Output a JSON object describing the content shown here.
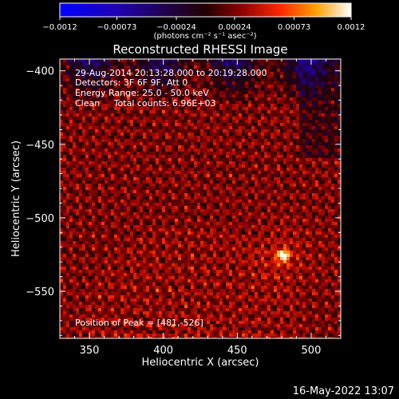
{
  "chart_data": {
    "type": "heatmap",
    "title": "Reconstructed RHESSI Image",
    "xlabel": "Heliocentric X (arcsec)",
    "ylabel": "Heliocentric Y (arcsec)",
    "xlim": [
      330,
      520
    ],
    "ylim": [
      -582,
      -392
    ],
    "x_ticks": [
      350,
      400,
      450,
      500
    ],
    "x_tick_labels": [
      "350",
      "400",
      "450",
      "500"
    ],
    "y_ticks": [
      -400,
      -450,
      -500,
      -550
    ],
    "y_tick_labels": [
      "−400",
      "−450",
      "−500",
      "−550"
    ],
    "colorbar": {
      "min": -0.0012,
      "max": 0.0012,
      "tick_values": [
        -0.0012,
        -0.00073,
        -0.00024,
        0.00024,
        0.00073,
        0.0012
      ],
      "tick_labels": [
        "−0.0012",
        "−0.00073",
        "−0.00024",
        "0.00024",
        "0.00073",
        "0.0012"
      ],
      "units_label": "(photons cm⁻² s⁻¹ asec⁻²)"
    },
    "annotations": [
      "29-Aug-2014 20:13:28.000 to 20:19:28.000",
      "Detectors: 3F 6F 9F, Att 0",
      "Energy Range: 25.0 - 50.0 keV",
      "Clean     Total counts: 6.96E+03"
    ],
    "peak_label": "Position of Peak = [481,-526]",
    "peak": {
      "x": 481,
      "y": -526
    }
  },
  "timestamp": "16-May-2022 13:07"
}
